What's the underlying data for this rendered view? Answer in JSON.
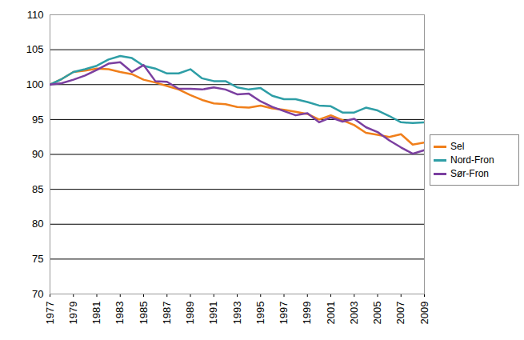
{
  "chart_data": {
    "type": "line",
    "x": [
      1977,
      1978,
      1979,
      1980,
      1981,
      1982,
      1983,
      1984,
      1985,
      1986,
      1987,
      1988,
      1989,
      1990,
      1991,
      1992,
      1993,
      1994,
      1995,
      1996,
      1997,
      1998,
      1999,
      2000,
      2001,
      2002,
      2003,
      2004,
      2005,
      2006,
      2007,
      2008,
      2009
    ],
    "series": [
      {
        "name": "Sel",
        "color": "#f07f1b",
        "values": [
          100,
          100.8,
          101.8,
          102,
          102.3,
          102.2,
          101.8,
          101.5,
          100.7,
          100.3,
          99.8,
          99.3,
          98.5,
          97.8,
          97.3,
          97.2,
          96.8,
          96.7,
          97,
          96.6,
          96.4,
          96.1,
          95.8,
          95,
          95.6,
          94.9,
          94.2,
          93.1,
          92.8,
          92.5,
          92.9,
          91.4,
          91.7
        ]
      },
      {
        "name": "Nord-Fron",
        "color": "#2e9ea6",
        "values": [
          100,
          100.8,
          101.8,
          102.2,
          102.7,
          103.6,
          104.1,
          103.8,
          102.7,
          102.3,
          101.6,
          101.6,
          102.2,
          100.9,
          100.5,
          100.5,
          99.6,
          99.3,
          99.5,
          98.4,
          97.9,
          97.9,
          97.5,
          97,
          96.9,
          96,
          96,
          96.7,
          96.3,
          95.5,
          94.6,
          94.5,
          94.6
        ]
      },
      {
        "name": "Sør-Fron",
        "color": "#7b3fa0",
        "values": [
          100,
          100.2,
          100.7,
          101.3,
          102.1,
          103,
          103.2,
          101.8,
          102.8,
          100.5,
          100.4,
          99.4,
          99.4,
          99.3,
          99.6,
          99.3,
          98.6,
          98.7,
          97.6,
          96.8,
          96.2,
          95.6,
          95.9,
          94.6,
          95.3,
          94.7,
          95.1,
          93.9,
          93.2,
          92,
          91,
          90.1,
          90.6
        ]
      }
    ],
    "xlim": [
      1977,
      2009
    ],
    "xticks": [
      1977,
      1979,
      1981,
      1983,
      1985,
      1987,
      1989,
      1991,
      1993,
      1995,
      1997,
      1999,
      2001,
      2003,
      2005,
      2007,
      2009
    ],
    "ylim": [
      70,
      110
    ],
    "yticks": [
      70,
      75,
      80,
      85,
      90,
      95,
      100,
      105,
      110
    ],
    "grid": true,
    "legend": "right"
  }
}
